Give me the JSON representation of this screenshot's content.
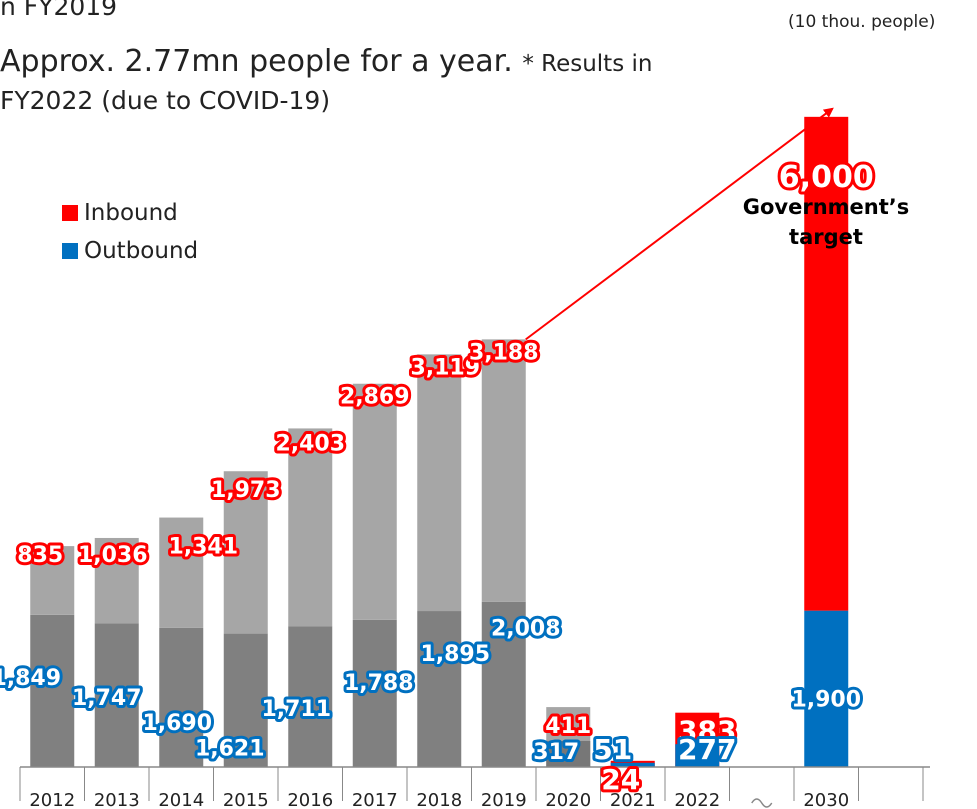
{
  "notes": {
    "line1": "n FY2019",
    "line2_main": "Approx. 2.77mn people for a year.",
    "line2_small": "* Results in",
    "line3": "FY2022 (due to COVID-19)"
  },
  "unit_label": "(10 thou. people)",
  "annotation": "Government’s target",
  "colors": {
    "inbound": "#ff0000",
    "outbound": "#0070c0",
    "total_grey": "#a6a6a6",
    "dark_grey": "#808080",
    "axis": "#888888"
  },
  "chart_data": {
    "type": "bar",
    "stacked": true,
    "categories": [
      "2012",
      "2013",
      "2014",
      "2015",
      "2016",
      "2017",
      "2018",
      "2019",
      "2020",
      "2021",
      "2022",
      "2030"
    ],
    "axis_break": "between 2022 and 2030",
    "series": [
      {
        "name": "Inbound",
        "values": [
          835,
          1036,
          1341,
          1973,
          2403,
          2869,
          3119,
          3188,
          411,
          24,
          383,
          6000
        ]
      },
      {
        "name": "Outbound",
        "values": [
          1849,
          1747,
          1690,
          1621,
          1711,
          1788,
          1895,
          2008,
          317,
          51,
          277,
          1900
        ]
      }
    ],
    "value_labels": {
      "inbound": [
        "835",
        "1,036",
        "1,341",
        "1,973",
        "2,403",
        "2,869",
        "3,119",
        "3,188",
        "411",
        "24",
        "383",
        "6,000"
      ],
      "outbound": [
        "1,849",
        "1,747",
        "1,690",
        "1,621",
        "1,711",
        "1,788",
        "1,895",
        "2,008",
        "317",
        "51",
        "277",
        "1,900"
      ]
    },
    "legend": [
      "Inbound",
      "Outbound"
    ],
    "legend_position": "top-left",
    "grid": false,
    "ylim": [
      0,
      8700
    ],
    "unit": "(10 thou. people)"
  }
}
